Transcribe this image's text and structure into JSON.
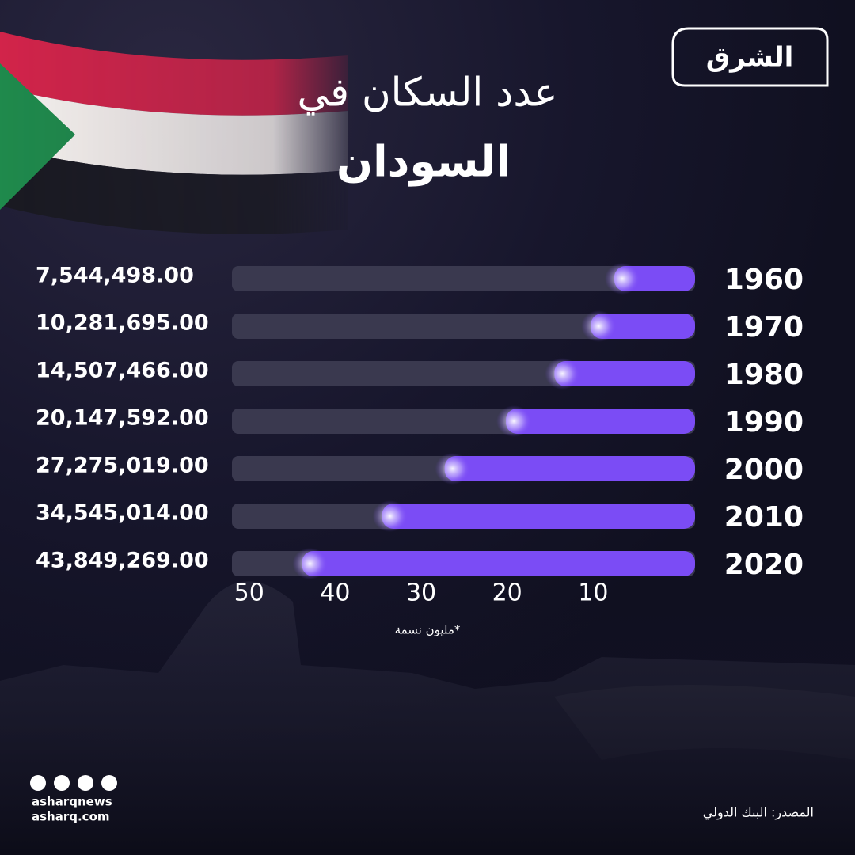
{
  "logo": "الشرق",
  "unit_note": "*مليون نسمة",
  "source": "المصدر: البنك الدولي",
  "social_handle": "asharqnews",
  "website": "asharq.com",
  "chart_data": {
    "type": "bar",
    "orientation": "horizontal",
    "title": [
      "عدد السكان في",
      "السودان"
    ],
    "categories": [
      "1960",
      "1970",
      "1980",
      "1990",
      "2000",
      "2010",
      "2020"
    ],
    "values": [
      7.544498,
      10.281695,
      14.507466,
      20.147592,
      27.275019,
      34.545014,
      43.849269
    ],
    "value_labels": [
      "7,544,498.00",
      "10,281,695.00",
      "14,507,466.00",
      "20,147,592.00",
      "27,275,019.00",
      "34,545,014.00",
      "43,849,269.00"
    ],
    "color": "#7b4cf5",
    "xlim": [
      0,
      52
    ],
    "xticks": [
      50,
      40,
      30,
      20,
      10
    ],
    "reversed": true
  }
}
